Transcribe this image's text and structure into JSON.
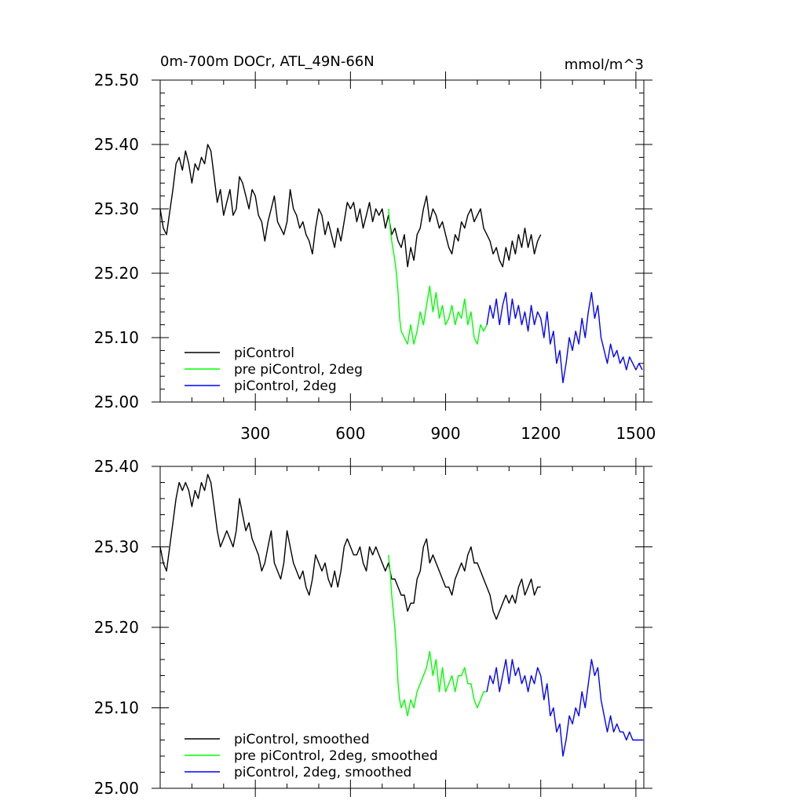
{
  "figure": {
    "title": "0m-700m DOCr, ATL_49N-66N",
    "units": "mmol/m^3"
  },
  "chart_data": [
    {
      "type": "line",
      "xlim": [
        0,
        1525
      ],
      "ylim": [
        25.0,
        25.5
      ],
      "x_tick_labels": [
        {
          "value": 300,
          "label": "300"
        },
        {
          "value": 600,
          "label": "600"
        },
        {
          "value": 900,
          "label": "900"
        },
        {
          "value": 1200,
          "label": "1200"
        },
        {
          "value": 1500,
          "label": "1500"
        }
      ],
      "y_tick_labels": [
        {
          "value": 25.0,
          "label": "25.00"
        },
        {
          "value": 25.1,
          "label": "25.10"
        },
        {
          "value": 25.2,
          "label": "25.20"
        },
        {
          "value": 25.3,
          "label": "25.30"
        },
        {
          "value": 25.4,
          "label": "25.40"
        },
        {
          "value": 25.5,
          "label": "25.50"
        }
      ],
      "legend_position": "bottom-left",
      "series": [
        {
          "name": "piControl",
          "color": "#000000",
          "x": [
            0,
            10,
            20,
            40,
            50,
            60,
            70,
            80,
            90,
            100,
            110,
            120,
            130,
            140,
            150,
            160,
            170,
            180,
            190,
            200,
            210,
            220,
            230,
            240,
            250,
            260,
            270,
            280,
            290,
            300,
            310,
            320,
            330,
            340,
            350,
            360,
            370,
            380,
            390,
            400,
            410,
            420,
            430,
            440,
            450,
            460,
            470,
            480,
            490,
            500,
            510,
            520,
            530,
            540,
            550,
            560,
            570,
            580,
            590,
            600,
            610,
            620,
            630,
            640,
            650,
            660,
            670,
            680,
            690,
            700,
            710,
            720,
            730,
            740,
            750,
            760,
            770,
            780,
            790,
            800,
            810,
            820,
            830,
            840,
            850,
            860,
            870,
            880,
            890,
            900,
            910,
            920,
            930,
            940,
            950,
            960,
            970,
            980,
            990,
            1000,
            1010,
            1020,
            1030,
            1040,
            1050,
            1060,
            1070,
            1080,
            1090,
            1100,
            1110,
            1120,
            1130,
            1140,
            1150,
            1160,
            1170,
            1180,
            1190,
            1200
          ],
          "y": [
            25.3,
            25.27,
            25.26,
            25.33,
            25.37,
            25.38,
            25.36,
            25.39,
            25.37,
            25.34,
            25.37,
            25.36,
            25.38,
            25.37,
            25.4,
            25.39,
            25.35,
            25.31,
            25.33,
            25.29,
            25.31,
            25.33,
            25.29,
            25.3,
            25.35,
            25.34,
            25.32,
            25.3,
            25.33,
            25.32,
            25.29,
            25.28,
            25.25,
            25.28,
            25.3,
            25.32,
            25.28,
            25.27,
            25.26,
            25.28,
            25.33,
            25.3,
            25.29,
            25.27,
            25.28,
            25.26,
            25.25,
            25.23,
            25.27,
            25.3,
            25.29,
            25.26,
            25.28,
            25.26,
            25.24,
            25.27,
            25.25,
            25.28,
            25.31,
            25.3,
            25.31,
            25.28,
            25.3,
            25.27,
            25.29,
            25.31,
            25.28,
            25.3,
            25.29,
            25.3,
            25.27,
            25.29,
            25.26,
            25.27,
            25.25,
            25.24,
            25.26,
            25.21,
            25.24,
            25.22,
            25.26,
            25.27,
            25.3,
            25.32,
            25.28,
            25.3,
            25.29,
            25.27,
            25.28,
            25.26,
            25.24,
            25.23,
            25.26,
            25.25,
            25.28,
            25.27,
            25.29,
            25.3,
            25.28,
            25.29,
            25.3,
            25.27,
            25.26,
            25.25,
            25.23,
            25.24,
            25.22,
            25.21,
            25.24,
            25.22,
            25.25,
            25.23,
            25.26,
            25.24,
            25.27,
            25.24,
            25.26,
            25.23,
            25.25,
            25.26
          ]
        },
        {
          "name": "pre piControl, 2deg",
          "color": "#00ff00",
          "x": [
            720,
            725,
            730,
            740,
            745,
            750,
            755,
            760,
            770,
            780,
            790,
            800,
            810,
            820,
            830,
            840,
            850,
            860,
            870,
            880,
            890,
            900,
            910,
            920,
            930,
            940,
            950,
            960,
            970,
            980,
            990,
            1000,
            1010,
            1020,
            1030
          ],
          "y": [
            25.3,
            25.27,
            25.25,
            25.22,
            25.2,
            25.17,
            25.13,
            25.11,
            25.1,
            25.09,
            25.12,
            25.09,
            25.11,
            25.14,
            25.12,
            25.15,
            25.18,
            25.14,
            25.17,
            25.13,
            25.15,
            25.12,
            25.13,
            25.15,
            25.12,
            25.14,
            25.13,
            25.16,
            25.12,
            25.14,
            25.1,
            25.09,
            25.12,
            25.11,
            25.12
          ]
        },
        {
          "name": "piControl, 2deg",
          "color": "#0000ff",
          "x": [
            1030,
            1040,
            1050,
            1060,
            1070,
            1080,
            1090,
            1100,
            1110,
            1120,
            1130,
            1140,
            1150,
            1160,
            1170,
            1180,
            1190,
            1200,
            1210,
            1220,
            1230,
            1240,
            1250,
            1260,
            1270,
            1280,
            1290,
            1300,
            1310,
            1320,
            1330,
            1340,
            1350,
            1360,
            1370,
            1380,
            1390,
            1400,
            1410,
            1420,
            1430,
            1440,
            1450,
            1460,
            1470,
            1480,
            1490,
            1500,
            1510,
            1520
          ],
          "y": [
            25.12,
            25.15,
            25.13,
            25.16,
            25.12,
            25.15,
            25.17,
            25.12,
            25.16,
            25.13,
            25.15,
            25.12,
            25.14,
            25.11,
            25.15,
            25.12,
            25.14,
            25.13,
            25.1,
            25.14,
            25.09,
            25.11,
            25.06,
            25.08,
            25.03,
            25.06,
            25.1,
            25.08,
            25.11,
            25.09,
            25.13,
            25.1,
            25.14,
            25.17,
            25.13,
            25.15,
            25.1,
            25.08,
            25.06,
            25.09,
            25.07,
            25.08,
            25.06,
            25.07,
            25.05,
            25.07,
            25.06,
            25.05,
            25.06,
            25.05
          ]
        }
      ]
    },
    {
      "type": "line",
      "xlim": [
        0,
        1525
      ],
      "ylim": [
        25.0,
        25.4
      ],
      "x_tick_labels": [],
      "y_tick_labels": [
        {
          "value": 25.0,
          "label": "25.00"
        },
        {
          "value": 25.1,
          "label": "25.10"
        },
        {
          "value": 25.2,
          "label": "25.20"
        },
        {
          "value": 25.3,
          "label": "25.30"
        },
        {
          "value": 25.4,
          "label": "25.40"
        }
      ],
      "legend_position": "bottom-left",
      "series": [
        {
          "name": "piControl, smoothed",
          "color": "#000000",
          "x": [
            0,
            10,
            20,
            40,
            50,
            60,
            70,
            80,
            90,
            100,
            110,
            120,
            130,
            140,
            150,
            160,
            170,
            180,
            190,
            200,
            210,
            220,
            230,
            240,
            250,
            260,
            270,
            280,
            290,
            300,
            310,
            320,
            330,
            340,
            350,
            360,
            370,
            380,
            390,
            400,
            410,
            420,
            430,
            440,
            450,
            460,
            470,
            480,
            490,
            500,
            510,
            520,
            530,
            540,
            550,
            560,
            570,
            580,
            590,
            600,
            610,
            620,
            630,
            640,
            650,
            660,
            670,
            680,
            690,
            700,
            710,
            720,
            730,
            740,
            750,
            760,
            770,
            780,
            790,
            800,
            810,
            820,
            830,
            840,
            850,
            860,
            870,
            880,
            890,
            900,
            910,
            920,
            930,
            940,
            950,
            960,
            970,
            980,
            990,
            1000,
            1010,
            1020,
            1030,
            1040,
            1050,
            1060,
            1070,
            1080,
            1090,
            1100,
            1110,
            1120,
            1130,
            1140,
            1150,
            1160,
            1170,
            1180,
            1190,
            1200
          ],
          "y": [
            25.3,
            25.28,
            25.27,
            25.33,
            25.36,
            25.38,
            25.37,
            25.38,
            25.37,
            25.35,
            25.37,
            25.36,
            25.38,
            25.37,
            25.39,
            25.38,
            25.35,
            25.32,
            25.3,
            25.31,
            25.32,
            25.31,
            25.3,
            25.32,
            25.36,
            25.34,
            25.32,
            25.33,
            25.31,
            25.3,
            25.29,
            25.27,
            25.28,
            25.3,
            25.32,
            25.28,
            25.27,
            25.26,
            25.28,
            25.32,
            25.3,
            25.28,
            25.27,
            25.26,
            25.27,
            25.25,
            25.24,
            25.26,
            25.29,
            25.28,
            25.27,
            25.28,
            25.26,
            25.25,
            25.27,
            25.25,
            25.27,
            25.3,
            25.31,
            25.3,
            25.29,
            25.29,
            25.3,
            25.28,
            25.27,
            25.3,
            25.29,
            25.3,
            25.29,
            25.28,
            25.27,
            25.28,
            25.26,
            25.26,
            25.25,
            25.24,
            25.24,
            25.22,
            25.23,
            25.23,
            25.26,
            25.27,
            25.3,
            25.31,
            25.28,
            25.29,
            25.28,
            25.27,
            25.26,
            25.25,
            25.25,
            25.24,
            25.26,
            25.27,
            25.28,
            25.27,
            25.29,
            25.3,
            25.28,
            25.28,
            25.27,
            25.26,
            25.25,
            25.24,
            25.22,
            25.21,
            25.22,
            25.23,
            25.24,
            25.23,
            25.24,
            25.23,
            25.25,
            25.26,
            25.24,
            25.25,
            25.26,
            25.24,
            25.25,
            25.25
          ]
        },
        {
          "name": "pre piControl, 2deg, smoothed",
          "color": "#00ff00",
          "x": [
            720,
            725,
            730,
            740,
            745,
            750,
            755,
            760,
            770,
            780,
            790,
            800,
            810,
            820,
            830,
            840,
            850,
            860,
            870,
            880,
            890,
            900,
            910,
            920,
            930,
            940,
            950,
            960,
            970,
            980,
            990,
            1000,
            1010,
            1020,
            1030
          ],
          "y": [
            25.29,
            25.27,
            25.24,
            25.2,
            25.17,
            25.13,
            25.11,
            25.1,
            25.11,
            25.09,
            25.11,
            25.1,
            25.12,
            25.13,
            25.14,
            25.15,
            25.17,
            25.14,
            25.16,
            25.12,
            25.15,
            25.12,
            25.13,
            25.14,
            25.12,
            25.14,
            25.14,
            25.15,
            25.13,
            25.13,
            25.11,
            25.1,
            25.11,
            25.12,
            25.12
          ]
        },
        {
          "name": "piControl, 2deg, smoothed",
          "color": "#0000ff",
          "x": [
            1030,
            1040,
            1050,
            1060,
            1070,
            1080,
            1090,
            1100,
            1110,
            1120,
            1130,
            1140,
            1150,
            1160,
            1170,
            1180,
            1190,
            1200,
            1210,
            1220,
            1230,
            1240,
            1250,
            1260,
            1270,
            1280,
            1290,
            1300,
            1310,
            1320,
            1330,
            1340,
            1350,
            1360,
            1370,
            1380,
            1390,
            1400,
            1410,
            1420,
            1430,
            1440,
            1450,
            1460,
            1470,
            1480,
            1490,
            1500,
            1510,
            1520
          ],
          "y": [
            25.12,
            25.14,
            25.13,
            25.15,
            25.12,
            25.14,
            25.16,
            25.13,
            25.16,
            25.14,
            25.15,
            25.13,
            25.14,
            25.12,
            25.14,
            25.13,
            25.15,
            25.14,
            25.11,
            25.13,
            25.09,
            25.1,
            25.07,
            25.08,
            25.04,
            25.06,
            25.09,
            25.08,
            25.1,
            25.09,
            25.12,
            25.1,
            25.13,
            25.16,
            25.14,
            25.15,
            25.11,
            25.09,
            25.07,
            25.09,
            25.07,
            25.08,
            25.07,
            25.07,
            25.06,
            25.07,
            25.06,
            25.06,
            25.06,
            25.06
          ]
        }
      ]
    }
  ]
}
